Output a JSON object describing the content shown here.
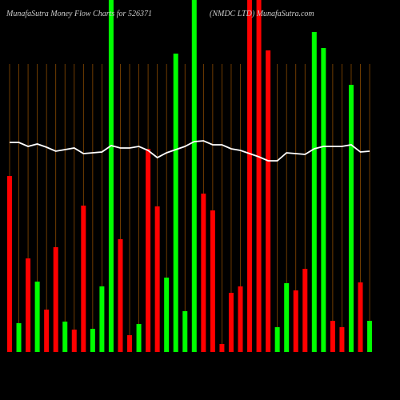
{
  "chart_data": {
    "type": "bar",
    "title": "MunafaSutra  Money Flow  Charts for 526371",
    "subtitle": "(NMDC LTD) MunafaSutra.com",
    "values": [
      220,
      36,
      117,
      88,
      53,
      131,
      38,
      28,
      183,
      29,
      82,
      460,
      141,
      21,
      35,
      254,
      182,
      93,
      373,
      51,
      460,
      198,
      177,
      10,
      74,
      82,
      460,
      460,
      377,
      31,
      86,
      77,
      104,
      400,
      380,
      39,
      31,
      334,
      87,
      39
    ],
    "colors": [
      "#ff0000",
      "#00ff00",
      "#ff0000",
      "#00ff00",
      "#ff0000",
      "#ff0000",
      "#00ff00",
      "#ff0000",
      "#ff0000",
      "#00ff00",
      "#00ff00",
      "#00ff00",
      "#ff0000",
      "#ff0000",
      "#00ff00",
      "#ff0000",
      "#ff0000",
      "#00ff00",
      "#00ff00",
      "#00ff00",
      "#00ff00",
      "#ff0000",
      "#ff0000",
      "#ff0000",
      "#ff0000",
      "#ff0000",
      "#ff0000",
      "#ff0000",
      "#ff0000",
      "#00ff00",
      "#00ff00",
      "#ff0000",
      "#ff0000",
      "#00ff00",
      "#00ff00",
      "#ff0000",
      "#ff0000",
      "#00ff00",
      "#ff0000",
      "#00ff00"
    ],
    "line": {
      "color": "#ffffff",
      "values": [
        262,
        262,
        257,
        260,
        256,
        251,
        253,
        255,
        248,
        249,
        250,
        258,
        255,
        255,
        257,
        252,
        243,
        249,
        253,
        257,
        263,
        264,
        259,
        259,
        254,
        252,
        248,
        244,
        239,
        239,
        249,
        248,
        247,
        254,
        257,
        257,
        257,
        259,
        250,
        251
      ]
    },
    "grid_color": "#8a4a00",
    "ylim": [
      0,
      440
    ]
  }
}
